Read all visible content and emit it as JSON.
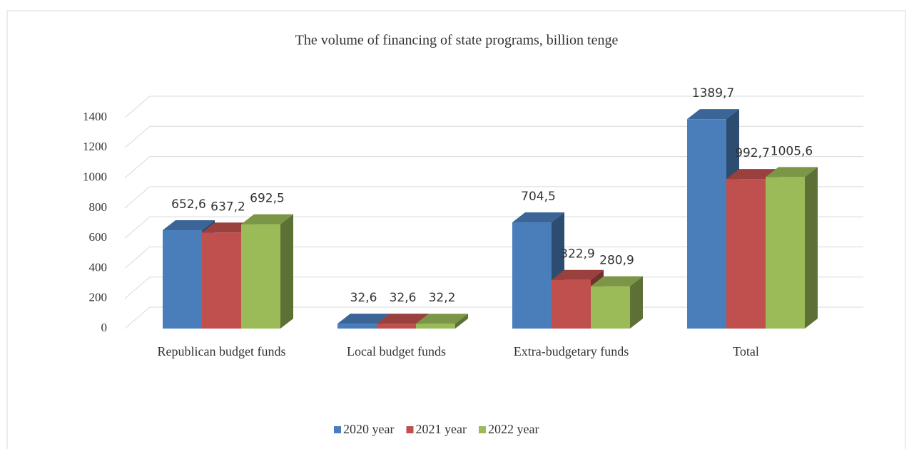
{
  "chart_data": {
    "type": "bar3d",
    "title": "The volume of financing of state programs, billion tenge",
    "categories": [
      "Republican budget funds",
      "Local budget funds",
      "Extra-budgetary funds",
      "Total"
    ],
    "series": [
      {
        "name": "2020 year",
        "color": "#4a7ebb",
        "values": [
          652.6,
          32.6,
          704.5,
          1389.7
        ],
        "value_labels": [
          "652,6",
          "32,6",
          "704,5",
          "1389,7"
        ]
      },
      {
        "name": "2021 year",
        "color": "#c0504d",
        "values": [
          637.2,
          32.6,
          322.9,
          992.7
        ],
        "value_labels": [
          "637,2",
          "32,6",
          "322,9",
          "992,7"
        ]
      },
      {
        "name": "2022 year",
        "color": "#9bbb59",
        "values": [
          692.5,
          32.2,
          280.9,
          1005.6
        ],
        "value_labels": [
          "692,5",
          "32,2",
          "280,9",
          "1005,6"
        ]
      }
    ],
    "ylim": [
      0,
      1400
    ],
    "yticks": [
      0,
      200,
      400,
      600,
      800,
      1000,
      1200,
      1400
    ],
    "grid": true,
    "legend": "bottom"
  }
}
